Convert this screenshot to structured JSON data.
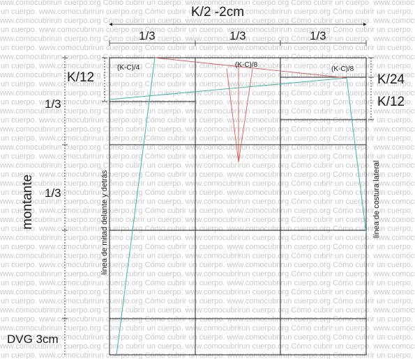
{
  "watermark": {
    "line_a": "www.comocubrirun cuerpo.org Cómo cubrir un cuerpo. www.comocubrirun cuerpo.org Cómo cubrir un cuerpo. www.comocubrirun cuerpo.org Cómo cubrir un cuerpo. www.comocubrirun cuerpo.org Cómo cubrir un cuerpo.",
    "line_b": "rir un cuerpo. www.comocubrirun cuerpo.org Cómo cubrir un cuerpo. www.comocubrirun cuerpo.org Cómo cubrir un cuerpo. www.comocubrirun cuerpo.org Cómo cubrir un cuerpo. www.comocubrirun"
  },
  "labels": {
    "top_width": "K/2 -2cm",
    "third_1": "1/3",
    "third_2": "1/3",
    "third_3": "1/3",
    "k12_left": "K/12",
    "left_third_1": "1/3",
    "left_third_2": "1/3",
    "montante": "montante",
    "dvg": "DVG 3cm",
    "kc4": "(K-C)/4",
    "kc8_mid": "(K-C)/8",
    "kc8_right": "(K-C)/8",
    "k24": "K/24",
    "k12_right": "K/12",
    "linea_mitad": "línea de mitad delante  y detrás",
    "linea_costura": "línea de costura lateral"
  },
  "colors": {
    "frame": "#222222",
    "teal": "#3cb8a4",
    "red": "#e05a5a",
    "watermark": "#c9c9c9"
  }
}
